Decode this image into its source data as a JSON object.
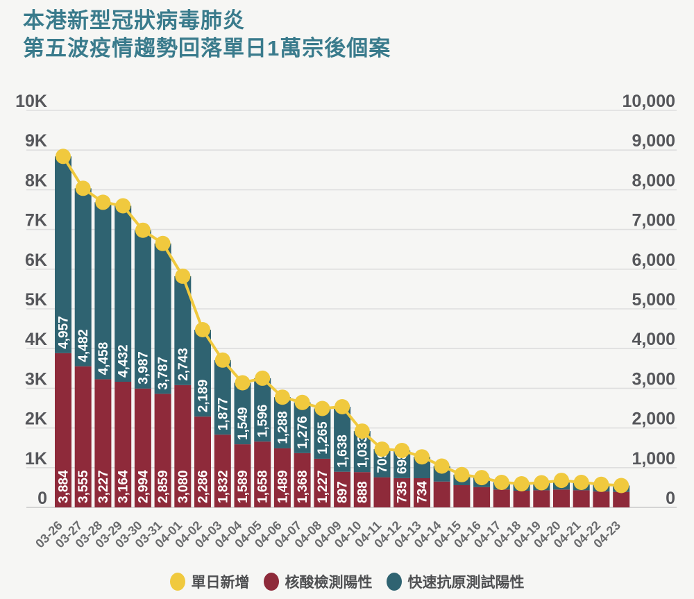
{
  "page": {
    "title_line1": "本港新型冠狀病毒肺炎",
    "title_line2": "第五波疫情趨勢回落單日1萬宗後個案"
  },
  "colors": {
    "title": "#3a7b8c",
    "background": "#f6f6f4",
    "bar_nucleic_red": "#8e2a3a",
    "bar_rat_teal": "#2f6371",
    "line_yellow": "#f0c93e",
    "grid": "#dedede",
    "baseline": "#c9c9c9",
    "tick_text": "#56575b",
    "date_text": "#6a6b6d",
    "bar_label_text": "#ffffff"
  },
  "legend": [
    {
      "label": "單日新增",
      "color": "#f0c93e"
    },
    {
      "label": "核酸檢測陽性",
      "color": "#8e2a3a"
    },
    {
      "label": "快速抗原測試陽性",
      "color": "#2f6371"
    }
  ],
  "chart_data": {
    "type": "bar",
    "subtype": "stacked-bar-with-line",
    "title": "本港新型冠狀病毒肺炎 第五波疫情趨勢回落單日1萬宗後個案",
    "xlabel": "",
    "ylabel": "",
    "ylim": [
      0,
      10000
    ],
    "grid": true,
    "legend_position": "bottom",
    "yticks_left": [
      "10K",
      "9K",
      "8K",
      "7K",
      "6K",
      "5K",
      "4K",
      "3K",
      "2K",
      "1K",
      "0"
    ],
    "yticks_right": [
      "10,000",
      "9,000",
      "8,000",
      "7,000",
      "6,000",
      "5,000",
      "4,000",
      "3,000",
      "2,000",
      "1,000",
      "0"
    ],
    "categories": [
      "03-26",
      "03-27",
      "03-28",
      "03-29",
      "03-30",
      "03-31",
      "04-01",
      "04-02",
      "04-03",
      "04-04",
      "04-05",
      "04-06",
      "04-07",
      "04-08",
      "04-09",
      "04-10",
      "04-11",
      "04-12",
      "04-13",
      "04-14",
      "04-15",
      "04-16",
      "04-17",
      "04-18",
      "04-19",
      "04-20",
      "04-21",
      "04-22",
      "04-23"
    ],
    "series": [
      {
        "name": "核酸檢測陽性",
        "color": "#8e2a3a",
        "values": [
          3884,
          3555,
          3227,
          3164,
          2994,
          2859,
          3080,
          2286,
          1832,
          1589,
          1658,
          1489,
          1368,
          1227,
          897,
          888,
          758,
          735,
          734,
          650,
          560,
          510,
          450,
          420,
          430,
          450,
          430,
          400,
          390
        ],
        "labels": [
          "3,884",
          "3,555",
          "3,227",
          "3,164",
          "2,994",
          "2,859",
          "3,080",
          "2,286",
          "1,832",
          "1,589",
          "1,658",
          "1,489",
          "1,368",
          "1,227",
          "897",
          "888",
          null,
          "735",
          "734",
          null,
          null,
          null,
          null,
          null,
          null,
          null,
          null,
          null,
          null
        ]
      },
      {
        "name": "快速抗原測試陽性",
        "color": "#2f6371",
        "values": [
          4957,
          4482,
          4458,
          4432,
          3987,
          3787,
          2743,
          2189,
          1877,
          1549,
          1596,
          1288,
          1276,
          1265,
          1638,
          1033,
          709,
          698,
          538,
          390,
          265,
          240,
          180,
          175,
          190,
          230,
          200,
          180,
          160
        ],
        "labels": [
          "4,957",
          "4,482",
          "4,458",
          "4,432",
          "3,987",
          "3,787",
          "2,743",
          "2,189",
          "1,877",
          "1,549",
          "1,596",
          "1,288",
          "1,276",
          "1,265",
          "1,638",
          "1,033",
          "709",
          "698",
          null,
          null,
          null,
          null,
          null,
          null,
          null,
          null,
          null,
          null,
          null
        ]
      }
    ],
    "line": {
      "name": "單日新增",
      "color": "#f0c93e",
      "values": [
        8841,
        8037,
        7685,
        7596,
        6981,
        6646,
        5823,
        4475,
        3709,
        3138,
        3254,
        2777,
        2644,
        2492,
        2535,
        1921,
        1467,
        1433,
        1272,
        1040,
        825,
        750,
        630,
        595,
        620,
        680,
        630,
        580,
        550
      ]
    }
  }
}
